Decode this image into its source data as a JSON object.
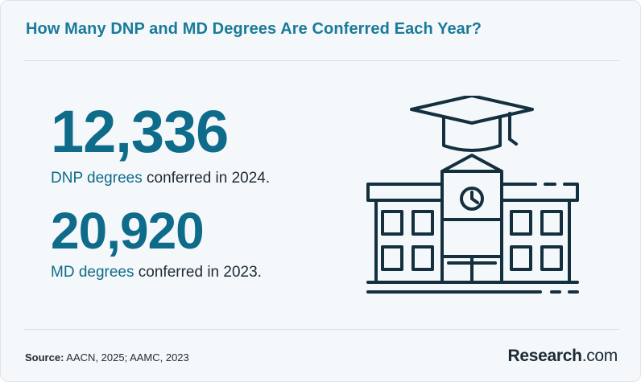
{
  "header": {
    "title": "How Many DNP and MD Degrees Are Conferred Each Year?"
  },
  "stats": [
    {
      "value": "12,336",
      "highlight": "DNP degrees",
      "rest": " conferred in 2024."
    },
    {
      "value": "20,920",
      "highlight": "MD degrees",
      "rest": " conferred in 2023."
    }
  ],
  "illustration": {
    "icon": "school-building-with-graduation-cap-icon"
  },
  "footer": {
    "source_label": "Source:",
    "source_text": " AACN, 2025; AAMC, 2023",
    "brand_name": "Research",
    "brand_domain": ".com"
  },
  "colors": {
    "accent": "#0e6b8a",
    "title": "#1a7a9a",
    "text": "#1e2b35",
    "background": "#f4f8fa",
    "icon_stroke": "#14303f"
  }
}
